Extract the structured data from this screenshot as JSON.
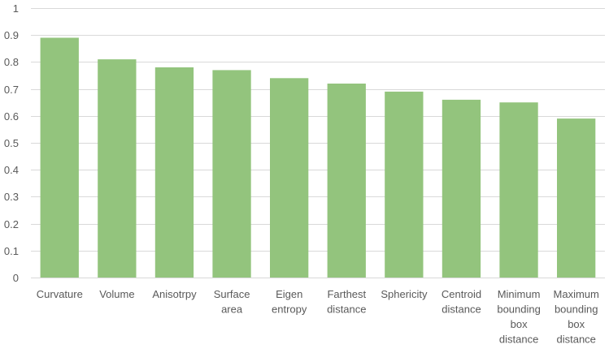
{
  "chart_data": {
    "type": "bar",
    "categories": [
      [
        "Curvature"
      ],
      [
        "Volume"
      ],
      [
        "Anisotrpy"
      ],
      [
        "Surface",
        "area"
      ],
      [
        "Eigen",
        "entropy"
      ],
      [
        "Farthest",
        "distance"
      ],
      [
        "Sphericity"
      ],
      [
        "Centroid",
        "distance"
      ],
      [
        "Minimum",
        "bounding",
        "box",
        "distance"
      ],
      [
        "Maximum",
        "bounding",
        "box",
        "distance"
      ]
    ],
    "values": [
      0.89,
      0.81,
      0.78,
      0.77,
      0.74,
      0.72,
      0.69,
      0.66,
      0.65,
      0.59
    ],
    "ylim": [
      0,
      1
    ],
    "yticks": [
      "0",
      "0.1",
      "0.2",
      "0.3",
      "0.4",
      "0.5",
      "0.6",
      "0.7",
      "0.8",
      "0.9",
      "1"
    ],
    "title": "",
    "xlabel": "",
    "ylabel": "",
    "grid": true,
    "legend": "none",
    "bar_color": "#93c47d"
  }
}
